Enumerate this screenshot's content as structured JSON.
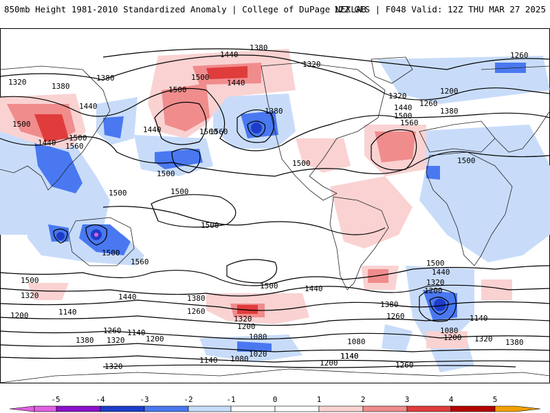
{
  "header": {
    "title": "850mb Height 1981-2010 Standardized Anomaly | College of DuPage NEXLAB",
    "run_info": "12Z GFS | F048 Valid: 12Z THU MAR 27 2025"
  },
  "colors": {
    "neg5": "#e060e0",
    "neg4": "#8a10c8",
    "neg3": "#1e3cc8",
    "neg2": "#4a78f0",
    "neg1": "#c8dcfa",
    "zero": "#ffffff",
    "pos1": "#fad2d2",
    "pos2": "#f08c8c",
    "pos3": "#e03c3c",
    "pos4": "#b40000",
    "pos5": "#f0a000"
  },
  "colorbar": {
    "ticks": [
      "-5",
      "-4",
      "-3",
      "-2",
      "-1",
      "0",
      "1",
      "2",
      "3",
      "4",
      "5"
    ]
  },
  "contour_labels": [
    "1380",
    "1440",
    "1260",
    "1320",
    "1380",
    "1380",
    "1320",
    "1500",
    "1440",
    "1500",
    "1560",
    "1440",
    "1440",
    "1560",
    "1500",
    "1440",
    "1500",
    "1380",
    "1560",
    "1200",
    "1260",
    "1320",
    "1380",
    "1440",
    "1500",
    "1560",
    "1500",
    "1500",
    "1500",
    "1500",
    "1500",
    "1500",
    "1560",
    "1500",
    "1500",
    "1500",
    "1440",
    "1320",
    "1440",
    "1380",
    "1260",
    "1200",
    "1320",
    "1140",
    "1200",
    "1380",
    "1320",
    "1260",
    "1140",
    "1200",
    "1080",
    "1080",
    "1020",
    "1140",
    "1080",
    "1140",
    "1320",
    "1500",
    "1440",
    "1380",
    "1320",
    "1260",
    "1200",
    "1140",
    "1080",
    "1200",
    "1320",
    "1380",
    "1200",
    "1140",
    "1260"
  ]
}
